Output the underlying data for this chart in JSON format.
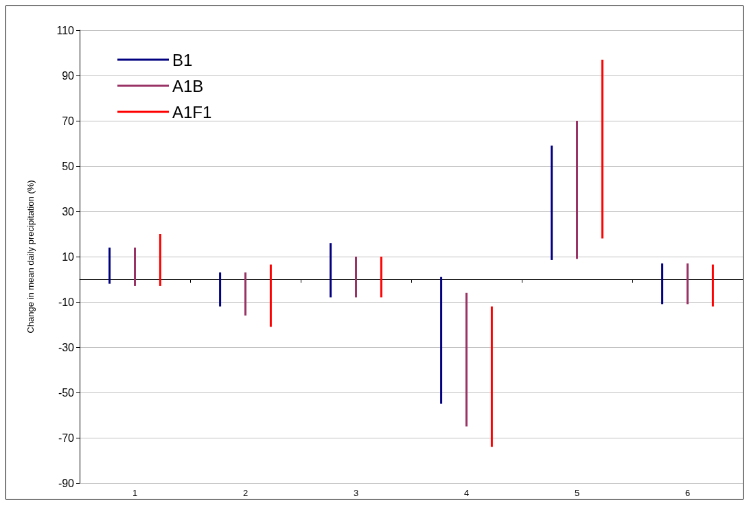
{
  "chart_data": {
    "type": "bar",
    "ylabel": "Change in mean daily precipitation (%)",
    "categories": [
      "1",
      "2",
      "3",
      "4",
      "5",
      "6"
    ],
    "series": [
      {
        "name": "B1",
        "color": "#000080",
        "base": [
          -2,
          -12,
          -8,
          -55,
          8.5,
          -11
        ],
        "values": [
          16,
          15,
          24,
          56,
          50.5,
          18
        ]
      },
      {
        "name": "A1B",
        "color": "#993366",
        "base": [
          -3,
          -16,
          -8,
          -65,
          9,
          -11
        ],
        "values": [
          17,
          19,
          18,
          59,
          61,
          18
        ]
      },
      {
        "name": "A1F1",
        "color": "#ff0000",
        "base": [
          -3,
          -21,
          -8,
          -74,
          18,
          -12
        ],
        "values": [
          23,
          27.5,
          18,
          62,
          79,
          18.5
        ]
      }
    ],
    "ylim": [
      -90,
      110
    ],
    "yticks": [
      -90,
      -70,
      -50,
      -30,
      -10,
      10,
      30,
      50,
      70,
      90,
      110
    ],
    "grid": "y",
    "legend": "top left"
  }
}
